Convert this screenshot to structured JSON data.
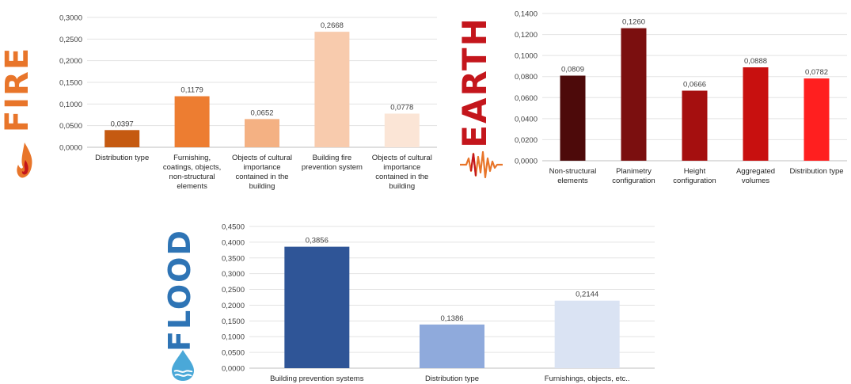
{
  "panels": {
    "fire": {
      "label": "FIRE"
    },
    "earth": {
      "label": "EARTH"
    },
    "flood": {
      "label": "FLOOD"
    }
  },
  "chart_data": [
    {
      "id": "fire",
      "type": "bar",
      "title": "",
      "xlabel": "",
      "ylabel": "",
      "ylim": [
        0,
        0.3
      ],
      "yticks": [
        "0,0000",
        "0,0500",
        "0,1000",
        "0,1500",
        "0,2000",
        "0,2500",
        "0,3000"
      ],
      "grid": true,
      "categories": [
        [
          "Distribution type"
        ],
        [
          "Furnishing,",
          "coatings, objects,",
          "non-structural",
          "elements"
        ],
        [
          "Objects of cultural",
          "importance",
          "contained in the",
          "building"
        ],
        [
          "Building fire",
          "prevention system"
        ],
        [
          "Objects of cultural",
          "importance",
          "contained in the",
          "building"
        ]
      ],
      "values": [
        0.0397,
        0.1179,
        0.0652,
        0.2668,
        0.0778
      ],
      "value_labels": [
        "0,0397",
        "0,1179",
        "0,0652",
        "0,2668",
        "0,0778"
      ],
      "colors": [
        "#c55a11",
        "#ed7d31",
        "#f4b183",
        "#f8cbad",
        "#fbe5d6"
      ]
    },
    {
      "id": "earth",
      "type": "bar",
      "title": "",
      "xlabel": "",
      "ylabel": "",
      "ylim": [
        0,
        0.14
      ],
      "yticks": [
        "0,0000",
        "0,0200",
        "0,0400",
        "0,0600",
        "0,0800",
        "0,1000",
        "0,1200",
        "0,1400"
      ],
      "grid": true,
      "categories": [
        [
          "Non-structural",
          "elements"
        ],
        [
          "Planimetry",
          "configuration"
        ],
        [
          "Height",
          "configuration"
        ],
        [
          "Aggregated",
          "volumes"
        ],
        [
          "Distribution type"
        ]
      ],
      "values": [
        0.0809,
        0.126,
        0.0666,
        0.0888,
        0.0782
      ],
      "value_labels": [
        "0,0809",
        "0,1260",
        "0,0666",
        "0,0888",
        "0,0782"
      ],
      "colors": [
        "#4d0a0a",
        "#7b0f0f",
        "#a50f0f",
        "#c8100f",
        "#ff1f1f"
      ]
    },
    {
      "id": "flood",
      "type": "bar",
      "title": "",
      "xlabel": "",
      "ylabel": "",
      "ylim": [
        0,
        0.45
      ],
      "yticks": [
        "0,0000",
        "0,0500",
        "0,1000",
        "0,1500",
        "0,2000",
        "0,2500",
        "0,3000",
        "0,3500",
        "0,4000",
        "0,4500"
      ],
      "grid": true,
      "categories": [
        [
          "Building prevention systems"
        ],
        [
          "Distribution type"
        ],
        [
          "Furnishings, objects, etc.."
        ]
      ],
      "values": [
        0.3856,
        0.1386,
        0.2144
      ],
      "value_labels": [
        "0,3856",
        "0,1386",
        "0,2144"
      ],
      "colors": [
        "#2f5597",
        "#8faadc",
        "#dae3f3"
      ]
    }
  ]
}
